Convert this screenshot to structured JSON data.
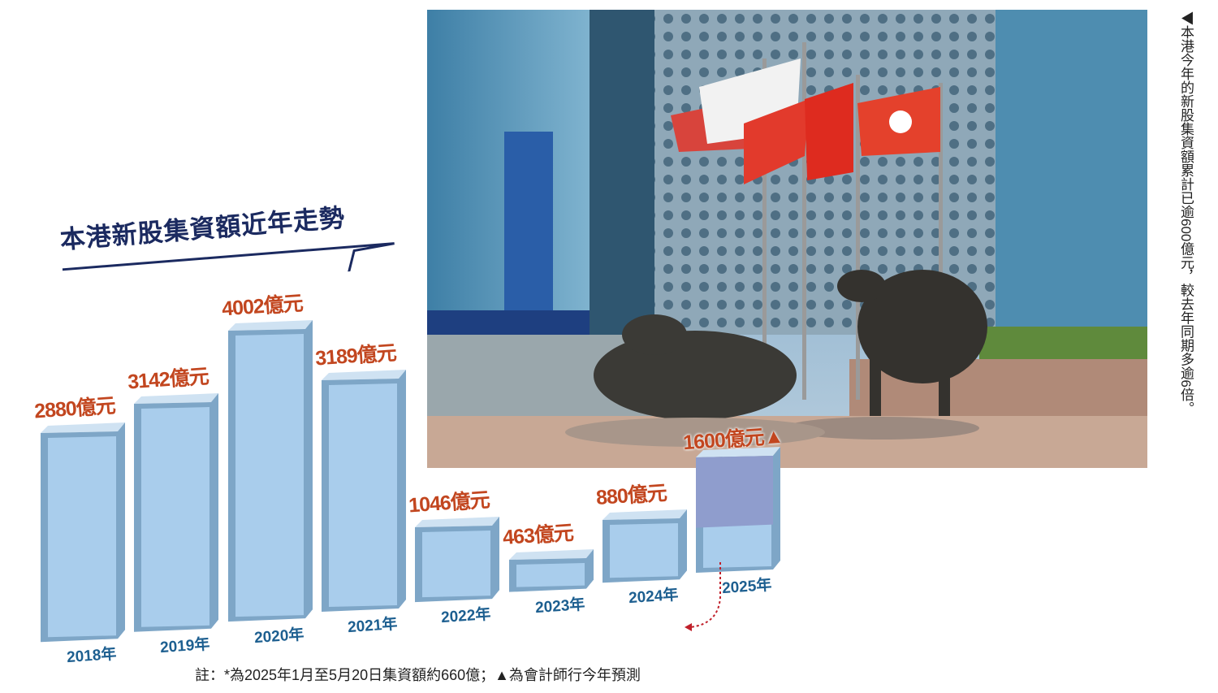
{
  "chart_data": {
    "type": "bar",
    "title": "本港新股集資額近年走勢",
    "categories": [
      "2018年",
      "2019年",
      "2020年",
      "2021年",
      "2022年",
      "2023年",
      "2024年",
      "2025年"
    ],
    "values": [
      2880,
      3142,
      4002,
      3189,
      1046,
      463,
      880,
      1600
    ],
    "value_labels": [
      "2880億元",
      "3142億元",
      "4002億元",
      "3189億元",
      "1046億元",
      "463億元",
      "880億元",
      "1600億元▲"
    ],
    "partial": {
      "category": "2025年",
      "value": 660,
      "label": "660億元*"
    },
    "unit": "億元",
    "colors": {
      "bar": "#a9cdec",
      "bar_side": "#7ea6c7",
      "bar_top": "#cfe2f2",
      "forecast": "#8f9dcd",
      "value_label": "#c2461f",
      "year_label": "#1d5f90",
      "title": "#1b2a60"
    }
  },
  "note": "註：*為2025年1月至5月20日集資額約660億；▲為會計師行今年預測",
  "caption": "◀本港今年的新股集資額累計已逾600億元，較去年同期多逾6倍。",
  "photo": {
    "description_icons": [
      "building",
      "flag",
      "bull-statue"
    ]
  }
}
